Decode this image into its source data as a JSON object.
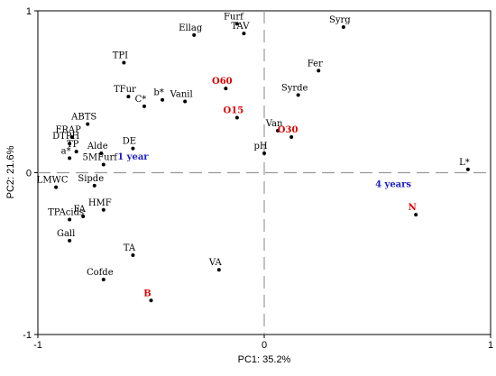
{
  "chart_data": {
    "type": "scatter",
    "title": "",
    "xlabel": "PC1: 35.2%",
    "ylabel": "PC2: 21.6%",
    "xlim": [
      -1,
      1
    ],
    "ylim": [
      -1,
      1
    ],
    "x_ticks": [
      -1,
      0,
      1
    ],
    "y_ticks": [
      -1,
      0,
      1
    ],
    "grid": false,
    "zero_lines": "dashed",
    "colors": {
      "variable": "#000000",
      "sample": "#dd0000",
      "group": "#1c1cc8",
      "zero_line": "#999999"
    },
    "points": [
      {
        "label": "Furf",
        "x": -0.12,
        "y": 0.92,
        "kind": "variable"
      },
      {
        "label": "TAV",
        "x": -0.09,
        "y": 0.86,
        "kind": "variable"
      },
      {
        "label": "Ellag",
        "x": -0.31,
        "y": 0.85,
        "kind": "variable"
      },
      {
        "label": "Syrg",
        "x": 0.35,
        "y": 0.9,
        "kind": "variable"
      },
      {
        "label": "TPI",
        "x": -0.62,
        "y": 0.68,
        "kind": "variable"
      },
      {
        "label": "Fer",
        "x": 0.24,
        "y": 0.63,
        "kind": "variable"
      },
      {
        "label": "O60",
        "x": -0.17,
        "y": 0.52,
        "kind": "sample"
      },
      {
        "label": "Syrde",
        "x": 0.15,
        "y": 0.48,
        "kind": "variable"
      },
      {
        "label": "TFur",
        "x": -0.6,
        "y": 0.47,
        "kind": "variable"
      },
      {
        "label": "b*",
        "x": -0.45,
        "y": 0.45,
        "kind": "variable"
      },
      {
        "label": "Vanil",
        "x": -0.35,
        "y": 0.44,
        "kind": "variable"
      },
      {
        "label": "C*",
        "x": -0.53,
        "y": 0.41,
        "kind": "variable"
      },
      {
        "label": "O15",
        "x": -0.12,
        "y": 0.34,
        "kind": "sample"
      },
      {
        "label": "ABTS",
        "x": -0.78,
        "y": 0.3,
        "kind": "variable"
      },
      {
        "label": "FRAP",
        "x": -0.85,
        "y": 0.22,
        "kind": "variable"
      },
      {
        "label": "Van",
        "x": 0.06,
        "y": 0.26,
        "kind": "variable"
      },
      {
        "label": "O30",
        "x": 0.12,
        "y": 0.22,
        "kind": "sample"
      },
      {
        "label": "DTPH",
        "x": -0.86,
        "y": 0.18,
        "kind": "variable"
      },
      {
        "label": "DE",
        "x": -0.58,
        "y": 0.15,
        "kind": "variable"
      },
      {
        "label": "TP",
        "x": -0.83,
        "y": 0.13,
        "kind": "variable"
      },
      {
        "label": "Alde",
        "x": -0.72,
        "y": 0.12,
        "kind": "variable"
      },
      {
        "label": "pH",
        "x": 0.0,
        "y": 0.12,
        "kind": "variable"
      },
      {
        "label": "a*",
        "x": -0.86,
        "y": 0.09,
        "kind": "variable"
      },
      {
        "label": "5MFurf",
        "x": -0.71,
        "y": 0.05,
        "kind": "variable"
      },
      {
        "label": "L*",
        "x": 0.9,
        "y": 0.02,
        "kind": "variable"
      },
      {
        "label": "LMWC",
        "x": -0.92,
        "y": -0.09,
        "kind": "variable"
      },
      {
        "label": "Sipde",
        "x": -0.75,
        "y": -0.08,
        "kind": "variable"
      },
      {
        "label": "HMF",
        "x": -0.71,
        "y": -0.23,
        "kind": "variable"
      },
      {
        "label": "FA",
        "x": -0.8,
        "y": -0.27,
        "kind": "variable"
      },
      {
        "label": "TPAcids",
        "x": -0.86,
        "y": -0.29,
        "kind": "variable"
      },
      {
        "label": "Gall",
        "x": -0.86,
        "y": -0.42,
        "kind": "variable"
      },
      {
        "label": "TA",
        "x": -0.58,
        "y": -0.51,
        "kind": "variable"
      },
      {
        "label": "VA",
        "x": -0.2,
        "y": -0.6,
        "kind": "variable"
      },
      {
        "label": "Cofde",
        "x": -0.71,
        "y": -0.66,
        "kind": "variable"
      },
      {
        "label": "B",
        "x": -0.5,
        "y": -0.79,
        "kind": "sample"
      },
      {
        "label": "N",
        "x": 0.67,
        "y": -0.26,
        "kind": "sample"
      }
    ],
    "groups": [
      {
        "label": "1 year",
        "x": -0.58,
        "y": 0.08
      },
      {
        "label": "4 years",
        "x": 0.57,
        "y": -0.09
      }
    ]
  }
}
